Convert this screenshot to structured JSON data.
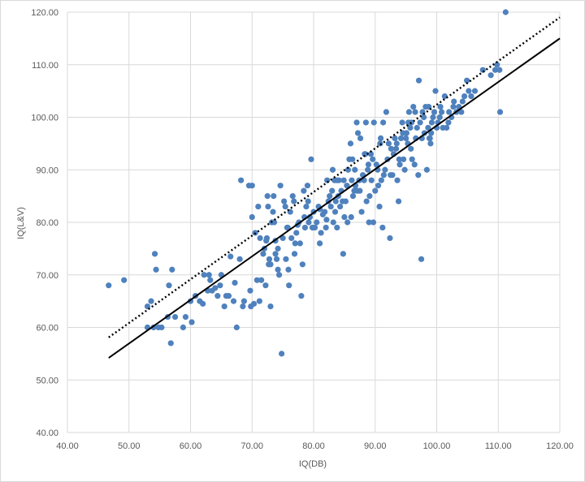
{
  "chart_data": {
    "type": "scatter",
    "title": "",
    "xlabel": "IQ(DB)",
    "ylabel": "IQ(L&V)",
    "xlim": [
      40,
      120
    ],
    "ylim": [
      40,
      120
    ],
    "x_ticks": [
      "40.00",
      "50.00",
      "60.00",
      "70.00",
      "80.00",
      "90.00",
      "100.00",
      "110.00",
      "120.00"
    ],
    "y_ticks": [
      "40.00",
      "50.00",
      "60.00",
      "70.00",
      "80.00",
      "90.00",
      "100.00",
      "110.00",
      "120.00"
    ],
    "grid": true,
    "colors": {
      "points": "#4f81bd",
      "grid": "#d9d9d9",
      "lines": "#000000",
      "text": "#595959"
    },
    "lines": [
      {
        "style": "solid",
        "x": [
          46.7,
          120
        ],
        "y": [
          54.2,
          115
        ]
      },
      {
        "style": "dotted",
        "x": [
          46.7,
          120
        ],
        "y": [
          58.1,
          119
        ]
      }
    ],
    "points": [
      [
        46.7,
        68
      ],
      [
        49.2,
        69
      ],
      [
        53.0,
        60
      ],
      [
        53.0,
        64
      ],
      [
        53.6,
        65
      ],
      [
        54.2,
        74
      ],
      [
        54.4,
        71
      ],
      [
        54.0,
        60
      ],
      [
        54.8,
        60
      ],
      [
        55.3,
        60
      ],
      [
        56.5,
        68
      ],
      [
        57.0,
        71
      ],
      [
        56.8,
        57
      ],
      [
        57.5,
        62
      ],
      [
        56.3,
        62
      ],
      [
        58.8,
        60
      ],
      [
        60.2,
        61
      ],
      [
        60.0,
        65
      ],
      [
        61.5,
        65
      ],
      [
        62.0,
        64.5
      ],
      [
        62.2,
        70
      ],
      [
        63.0,
        70
      ],
      [
        63.5,
        67
      ],
      [
        64.0,
        67.5
      ],
      [
        64.8,
        68
      ],
      [
        65.0,
        70
      ],
      [
        65.8,
        66
      ],
      [
        66.2,
        66
      ],
      [
        66.5,
        73.5
      ],
      [
        67.0,
        65
      ],
      [
        67.2,
        68.5
      ],
      [
        67.5,
        60
      ],
      [
        68.0,
        73
      ],
      [
        68.2,
        88
      ],
      [
        68.7,
        65
      ],
      [
        69.5,
        87
      ],
      [
        69.7,
        67
      ],
      [
        70.0,
        87
      ],
      [
        70.0,
        81
      ],
      [
        70.3,
        64.5
      ],
      [
        70.5,
        78
      ],
      [
        70.8,
        69
      ],
      [
        71.0,
        83
      ],
      [
        71.2,
        65
      ],
      [
        71.5,
        69
      ],
      [
        71.8,
        74
      ],
      [
        72.0,
        75
      ],
      [
        72.2,
        68
      ],
      [
        72.3,
        76.5
      ],
      [
        72.4,
        77
      ],
      [
        72.5,
        85
      ],
      [
        72.6,
        83
      ],
      [
        72.8,
        73
      ],
      [
        73.0,
        72
      ],
      [
        73.0,
        64
      ],
      [
        73.2,
        80
      ],
      [
        73.4,
        82
      ],
      [
        73.5,
        85
      ],
      [
        73.6,
        80
      ],
      [
        73.8,
        76.5
      ],
      [
        74.0,
        73
      ],
      [
        74.2,
        71
      ],
      [
        74.4,
        70
      ],
      [
        74.6,
        87
      ],
      [
        74.8,
        55
      ],
      [
        75.0,
        77
      ],
      [
        75.2,
        84
      ],
      [
        75.4,
        83
      ],
      [
        75.5,
        73
      ],
      [
        75.7,
        79
      ],
      [
        75.9,
        71
      ],
      [
        76.0,
        68
      ],
      [
        76.2,
        82
      ],
      [
        76.4,
        77
      ],
      [
        76.6,
        85
      ],
      [
        76.8,
        84
      ],
      [
        77.0,
        76
      ],
      [
        77.2,
        78
      ],
      [
        77.4,
        79.5
      ],
      [
        77.6,
        80
      ],
      [
        77.8,
        76
      ],
      [
        78.0,
        66
      ],
      [
        78.2,
        72
      ],
      [
        78.4,
        86
      ],
      [
        78.6,
        79
      ],
      [
        78.8,
        83
      ],
      [
        79.0,
        87
      ],
      [
        79.2,
        80
      ],
      [
        79.4,
        81
      ],
      [
        79.6,
        92
      ],
      [
        79.8,
        79
      ],
      [
        80.0,
        82
      ],
      [
        80.2,
        79
      ],
      [
        80.5,
        80
      ],
      [
        80.8,
        83
      ],
      [
        81.0,
        76
      ],
      [
        81.2,
        78
      ],
      [
        81.5,
        81.5
      ],
      [
        81.8,
        82
      ],
      [
        82.0,
        79
      ],
      [
        82.2,
        88
      ],
      [
        82.4,
        84
      ],
      [
        82.6,
        85
      ],
      [
        82.8,
        83
      ],
      [
        83.0,
        86
      ],
      [
        83.1,
        90
      ],
      [
        83.2,
        80
      ],
      [
        83.4,
        88
      ],
      [
        83.5,
        82
      ],
      [
        83.6,
        84
      ],
      [
        83.8,
        79
      ],
      [
        84.0,
        85
      ],
      [
        84.1,
        88
      ],
      [
        84.3,
        83
      ],
      [
        84.5,
        86
      ],
      [
        84.7,
        84
      ],
      [
        84.8,
        74
      ],
      [
        85.0,
        81
      ],
      [
        85.2,
        84
      ],
      [
        85.4,
        87
      ],
      [
        85.6,
        90
      ],
      [
        85.8,
        92
      ],
      [
        86.0,
        95
      ],
      [
        86.1,
        81
      ],
      [
        86.2,
        88
      ],
      [
        86.4,
        85
      ],
      [
        86.6,
        86
      ],
      [
        86.8,
        87
      ],
      [
        87.0,
        99
      ],
      [
        87.1,
        86
      ],
      [
        87.2,
        97
      ],
      [
        87.4,
        88
      ],
      [
        87.6,
        96
      ],
      [
        87.8,
        82
      ],
      [
        88.0,
        89
      ],
      [
        88.2,
        88
      ],
      [
        88.3,
        93
      ],
      [
        88.5,
        99
      ],
      [
        88.6,
        84
      ],
      [
        88.8,
        90
      ],
      [
        89.0,
        80
      ],
      [
        89.1,
        85
      ],
      [
        89.3,
        93
      ],
      [
        89.4,
        88
      ],
      [
        89.6,
        92
      ],
      [
        89.8,
        99
      ],
      [
        90.0,
        86
      ],
      [
        90.2,
        91
      ],
      [
        90.4,
        90
      ],
      [
        90.5,
        87
      ],
      [
        90.7,
        83
      ],
      [
        90.9,
        96
      ],
      [
        91.0,
        88
      ],
      [
        91.2,
        79
      ],
      [
        91.4,
        89
      ],
      [
        91.6,
        90
      ],
      [
        91.8,
        101
      ],
      [
        92.0,
        92
      ],
      [
        92.2,
        95
      ],
      [
        92.4,
        77
      ],
      [
        92.6,
        94
      ],
      [
        92.8,
        89
      ],
      [
        93.0,
        93
      ],
      [
        93.2,
        96
      ],
      [
        93.4,
        94
      ],
      [
        93.6,
        88
      ],
      [
        93.8,
        84
      ],
      [
        94.0,
        91
      ],
      [
        94.2,
        96
      ],
      [
        94.4,
        99
      ],
      [
        94.6,
        92
      ],
      [
        94.8,
        90
      ],
      [
        95.0,
        96
      ],
      [
        95.1,
        97
      ],
      [
        95.3,
        95
      ],
      [
        95.5,
        101
      ],
      [
        95.7,
        98
      ],
      [
        95.9,
        99
      ],
      [
        96.0,
        92
      ],
      [
        96.2,
        102
      ],
      [
        96.4,
        91
      ],
      [
        96.6,
        96
      ],
      [
        96.8,
        98
      ],
      [
        97.0,
        89
      ],
      [
        97.1,
        107
      ],
      [
        97.3,
        99
      ],
      [
        97.5,
        73
      ],
      [
        97.7,
        101
      ],
      [
        97.9,
        100
      ],
      [
        98.0,
        97
      ],
      [
        98.2,
        102
      ],
      [
        98.4,
        90
      ],
      [
        98.6,
        98
      ],
      [
        98.8,
        96
      ],
      [
        99.0,
        95
      ],
      [
        99.2,
        99
      ],
      [
        99.4,
        100
      ],
      [
        99.6,
        101
      ],
      [
        99.8,
        105
      ],
      [
        100.0,
        98
      ],
      [
        100.2,
        99
      ],
      [
        100.5,
        100
      ],
      [
        100.8,
        101
      ],
      [
        101.0,
        98
      ],
      [
        101.3,
        104
      ],
      [
        101.6,
        98
      ],
      [
        102.0,
        101
      ],
      [
        102.4,
        100
      ],
      [
        102.8,
        103
      ],
      [
        103.2,
        101
      ],
      [
        103.6,
        102
      ],
      [
        104.0,
        101
      ],
      [
        104.5,
        104
      ],
      [
        104.9,
        107
      ],
      [
        105.2,
        105
      ],
      [
        105.6,
        104
      ],
      [
        106.2,
        105
      ],
      [
        107.5,
        109
      ],
      [
        108.8,
        108
      ],
      [
        109.5,
        109
      ],
      [
        109.8,
        110
      ],
      [
        110.2,
        109
      ],
      [
        110.3,
        101
      ],
      [
        111.2,
        120
      ],
      [
        85.5,
        80
      ],
      [
        86.3,
        92
      ],
      [
        89.7,
        80
      ],
      [
        92.5,
        89
      ],
      [
        93.5,
        95
      ],
      [
        94.5,
        97
      ],
      [
        95.8,
        94
      ],
      [
        96.5,
        101
      ],
      [
        98.9,
        96
      ],
      [
        100.6,
        102
      ],
      [
        87.5,
        86
      ],
      [
        88.9,
        91
      ],
      [
        83.8,
        88
      ],
      [
        81.0,
        82.5
      ],
      [
        79.1,
        84
      ],
      [
        76.9,
        74
      ],
      [
        78.5,
        81
      ],
      [
        75.8,
        79
      ],
      [
        74.2,
        75
      ],
      [
        69.8,
        64
      ],
      [
        72.7,
        72
      ],
      [
        71.3,
        77
      ],
      [
        82.1,
        80.5
      ],
      [
        84.9,
        88
      ],
      [
        90.8,
        95
      ],
      [
        91.3,
        99
      ],
      [
        93.9,
        92
      ],
      [
        97.6,
        96
      ],
      [
        99.1,
        97
      ],
      [
        101.9,
        99
      ],
      [
        64.4,
        66
      ],
      [
        65.5,
        64
      ],
      [
        63.2,
        69
      ],
      [
        62.8,
        67
      ],
      [
        60.8,
        66
      ],
      [
        59.2,
        62
      ],
      [
        68.5,
        64
      ],
      [
        73.8,
        74
      ],
      [
        88.4,
        93
      ],
      [
        86.7,
        90
      ],
      [
        95.4,
        99
      ],
      [
        98.7,
        102
      ],
      [
        102.7,
        102
      ],
      [
        104.2,
        103
      ]
    ]
  }
}
